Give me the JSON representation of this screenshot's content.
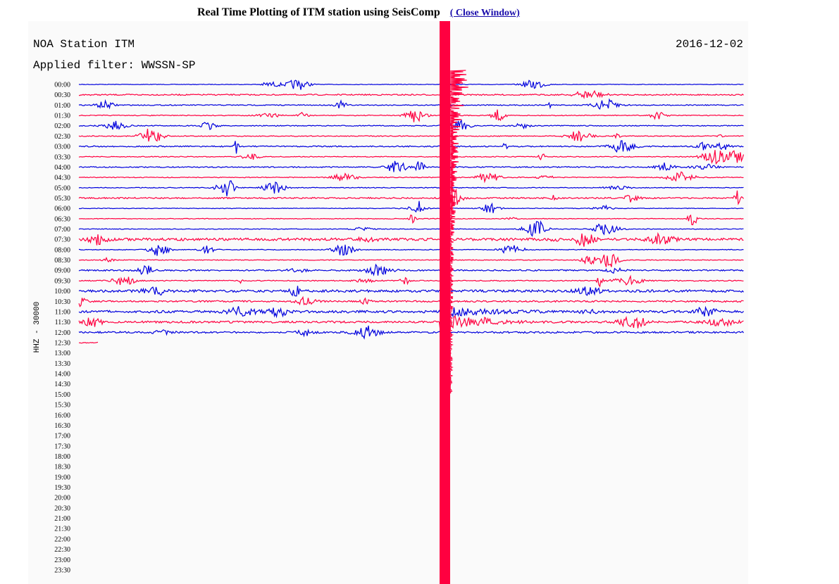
{
  "header": {
    "title": "Real Time Plotting of ITM station using SeisComp",
    "link": "( Close Window)"
  },
  "plot": {
    "station": "NOA Station ITM",
    "date": "2016-12-02",
    "filter": "Applied filter: WWSSN-SP",
    "channel": "HHZ - 30000",
    "time_labels": [
      "00:00",
      "00:30",
      "01:00",
      "01:30",
      "02:00",
      "02:30",
      "03:00",
      "03:30",
      "04:00",
      "04:30",
      "05:00",
      "05:30",
      "06:00",
      "06:30",
      "07:00",
      "07:30",
      "08:00",
      "08:30",
      "09:00",
      "09:30",
      "10:00",
      "10:30",
      "11:00",
      "11:30",
      "12:00",
      "12:30",
      "13:00",
      "13:30",
      "14:00",
      "14:30",
      "15:00",
      "15:30",
      "16:00",
      "16:30",
      "17:00",
      "17:30",
      "18:00",
      "18:30",
      "19:00",
      "19:30",
      "20:00",
      "20:30",
      "21:00",
      "21:30",
      "22:00",
      "22:30",
      "23:00",
      "23:30"
    ]
  }
}
